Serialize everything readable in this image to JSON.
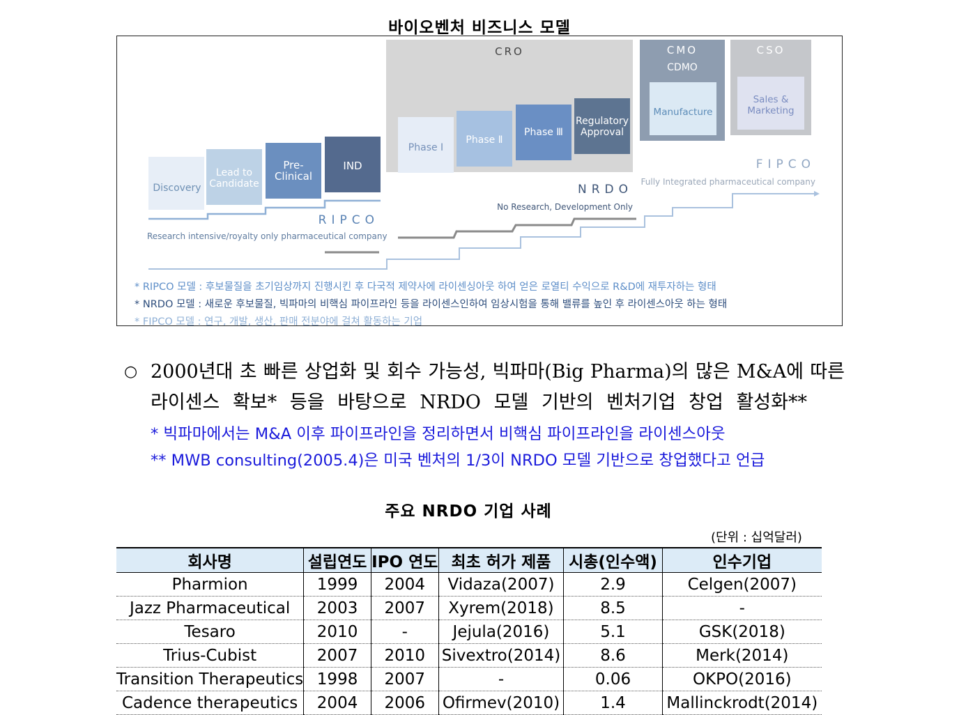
{
  "figure": {
    "title": "바이오벤처 비즈니스 모델",
    "stages": [
      "Discovery",
      "Lead to Candidate",
      "Pre-Clinical",
      "IND",
      "Phase Ⅰ",
      "Phase Ⅱ",
      "Phase Ⅲ",
      "Regulatory Approval",
      "Manufacture",
      "Sales & Marketing"
    ],
    "groups": {
      "cro": "CRO",
      "cmo": "CMO",
      "cdmo": "CDMO",
      "cso": "CSO"
    },
    "models": [
      {
        "name": "RIPCO",
        "desc": "Research intensive/royalty only pharmaceutical company"
      },
      {
        "name": "NRDO",
        "desc": "No Research, Development Only"
      },
      {
        "name": "FIPCO",
        "desc": "Fully Integrated pharmaceutical company"
      }
    ],
    "notes": [
      {
        "label": "* RIPCO 모델 : ",
        "text": "후보물질을 초기임상까지 진행시킨 후 다국적 제약사에 라이센싱아웃 하여 얻은 로열티 수익으로 R&D에 재투자하는 형태"
      },
      {
        "label": "* NRDO 모델 : ",
        "text": "새로운 후보물질, 빅파마의 비핵심 파이프라인 등을 라이센스인하여 임상시험을 통해 밸류를 높인 후 라이센스아웃 하는 형태"
      },
      {
        "label": "* FIPCO 모델 : ",
        "text": "연구, 개발, 생산, 판매 전분야에 걸쳐 활동하는 기업"
      }
    ]
  },
  "body": {
    "bullet": "○",
    "para_line1": "2000년대 초 빠른 상업화 및 회수 가능성, 빅파마(Big Pharma)의 많은 M&A에 따른",
    "para_line2": "라이센스 확보* 등을 바탕으로 NRDO 모델 기반의 벤처기업 창업 활성화**",
    "note1": "*  빅파마에서는 M&A 이후 파이프라인을 정리하면서 비핵심 파이프라인을 라이센스아웃",
    "note2": "**  MWB consulting(2005.4)은 미국 벤처의 1/3이 NRDO 모델 기반으로 창업했다고 언급"
  },
  "table": {
    "title": "주요 NRDO 기업 사례",
    "unit": "(단위 : 십억달러)",
    "headers": [
      "회사명",
      "설립연도",
      "IPO 연도",
      "최초 허가 제품",
      "시총(인수액)",
      "인수기업"
    ],
    "rows": [
      [
        "Pharmion",
        "1999",
        "2004",
        "Vidaza(2007)",
        "2.9",
        "Celgen(2007)"
      ],
      [
        "Jazz Pharmaceutical",
        "2003",
        "2007",
        "Xyrem(2018)",
        "8.5",
        "-"
      ],
      [
        "Tesaro",
        "2010",
        "-",
        "Jejula(2016)",
        "5.1",
        "GSK(2018)"
      ],
      [
        "Trius-Cubist",
        "2007",
        "2010",
        "Sivextro(2014)",
        "8.6",
        "Merk(2014)"
      ],
      [
        "Transition Therapeutics",
        "1998",
        "2007",
        "-",
        "0.06",
        "OKPO(2016)"
      ],
      [
        "Cadence therapeutics",
        "2004",
        "2006",
        "Ofirmev(2010)",
        "1.4",
        "Mallinckrodt(2014)"
      ]
    ]
  }
}
